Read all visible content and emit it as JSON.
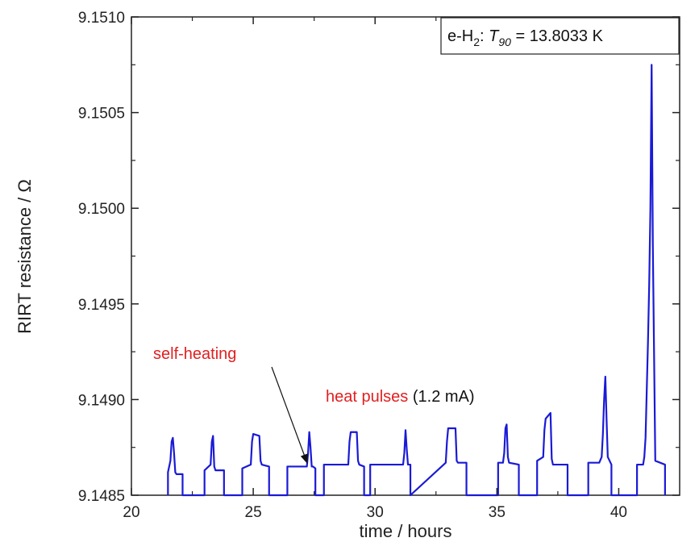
{
  "chart_data": {
    "type": "line",
    "xlabel": "time / hours",
    "ylabel": "RIRT resistance / Ω",
    "xlim": [
      20,
      42.5
    ],
    "ylim": [
      9.1485,
      9.151
    ],
    "xticks": [
      "20",
      "25",
      "30",
      "35",
      "40"
    ],
    "yticks": [
      "9.1485",
      "9.1490",
      "9.1495",
      "9.1500",
      "9.1505",
      "9.1510"
    ],
    "grid": false,
    "legend_box": {
      "prefix": "e-H",
      "subscript": "2",
      "sep": ": ",
      "symbol": "T",
      "symbol_sub": "90",
      "value_text": " = 13.8033 K"
    },
    "annotations": {
      "self_heating": "self-heating",
      "heat_pulses": "heat pulses",
      "current": " (1.2 mA)"
    },
    "colors": {
      "series": "#1a1ad6",
      "annotation_red": "#e02020",
      "axis": "#222222"
    },
    "pulse_starts": [
      21.5,
      23.0,
      24.55,
      26.4,
      27.9,
      29.8,
      31.45,
      33.1,
      35.05,
      36.65,
      38.75,
      40.75
    ],
    "series": [
      {
        "x": [
          21.5,
          21.5,
          21.6,
          21.65,
          21.7,
          21.75,
          21.8,
          21.85,
          22.1,
          22.1,
          23.0,
          23.0,
          23.25,
          23.3,
          23.35,
          23.4,
          23.45,
          23.8,
          23.8,
          24.55,
          24.55,
          24.9,
          24.95,
          25.0,
          25.25,
          25.3,
          25.35,
          25.65,
          25.65,
          26.4,
          26.4,
          27.2,
          27.25,
          27.3,
          27.35,
          27.4,
          27.45,
          27.55,
          27.55,
          27.9,
          27.9,
          28.9,
          28.95,
          29.0,
          29.25,
          29.3,
          29.35,
          29.55,
          29.55,
          29.8,
          29.8,
          31.15,
          31.2,
          31.25,
          31.3,
          31.35,
          31.4,
          31.45,
          31.45,
          32.9,
          32.95,
          33.0,
          33.3,
          33.35,
          33.4,
          33.75,
          33.75,
          35.05,
          35.05,
          35.25,
          35.3,
          35.35,
          35.4,
          35.45,
          35.5,
          35.9,
          35.9,
          36.65,
          36.65,
          36.9,
          36.95,
          37.0,
          37.2,
          37.25,
          37.3,
          37.9,
          37.9,
          38.75,
          38.75,
          39.2,
          39.3,
          39.35,
          39.4,
          39.45,
          39.5,
          39.55,
          39.7,
          39.7,
          40.75,
          40.75,
          41.0,
          41.05,
          41.1,
          41.15,
          41.2,
          41.25,
          41.3,
          41.35,
          41.4,
          41.5,
          41.9,
          41.9
        ],
        "y": [
          9.1485,
          9.14862,
          9.14868,
          9.14878,
          9.1488,
          9.14872,
          9.14862,
          9.14861,
          9.14861,
          9.1485,
          9.1485,
          9.14863,
          9.14866,
          9.14878,
          9.14881,
          9.14865,
          9.14863,
          9.14863,
          9.1485,
          9.1485,
          9.14864,
          9.14866,
          9.14878,
          9.14882,
          9.14881,
          9.14868,
          9.14866,
          9.14865,
          9.1485,
          9.1485,
          9.14865,
          9.14865,
          9.14872,
          9.14883,
          9.14875,
          9.14865,
          9.14865,
          9.14864,
          9.1485,
          9.1485,
          9.14866,
          9.14866,
          9.14878,
          9.14883,
          9.14883,
          9.14868,
          9.14866,
          9.14865,
          9.1485,
          9.1485,
          9.14866,
          9.14866,
          9.14872,
          9.14884,
          9.14874,
          9.14866,
          9.14866,
          9.14866,
          9.1485,
          9.14867,
          9.14878,
          9.14885,
          9.14885,
          9.14868,
          9.14867,
          9.14867,
          9.1485,
          9.1485,
          9.14867,
          9.14867,
          9.14872,
          9.14885,
          9.14887,
          9.1487,
          9.14867,
          9.14866,
          9.1485,
          9.1485,
          9.14868,
          9.1487,
          9.14884,
          9.1489,
          9.14893,
          9.14869,
          9.14866,
          9.14866,
          9.1485,
          9.1485,
          9.14867,
          9.14867,
          9.1487,
          9.14882,
          9.149,
          9.14912,
          9.1489,
          9.1487,
          9.14866,
          9.1485,
          9.1485,
          9.14866,
          9.14866,
          9.1487,
          9.1488,
          9.14905,
          9.1493,
          9.1496,
          9.15,
          9.15075,
          9.1498,
          9.14868,
          9.14866,
          9.1485
        ]
      }
    ]
  }
}
